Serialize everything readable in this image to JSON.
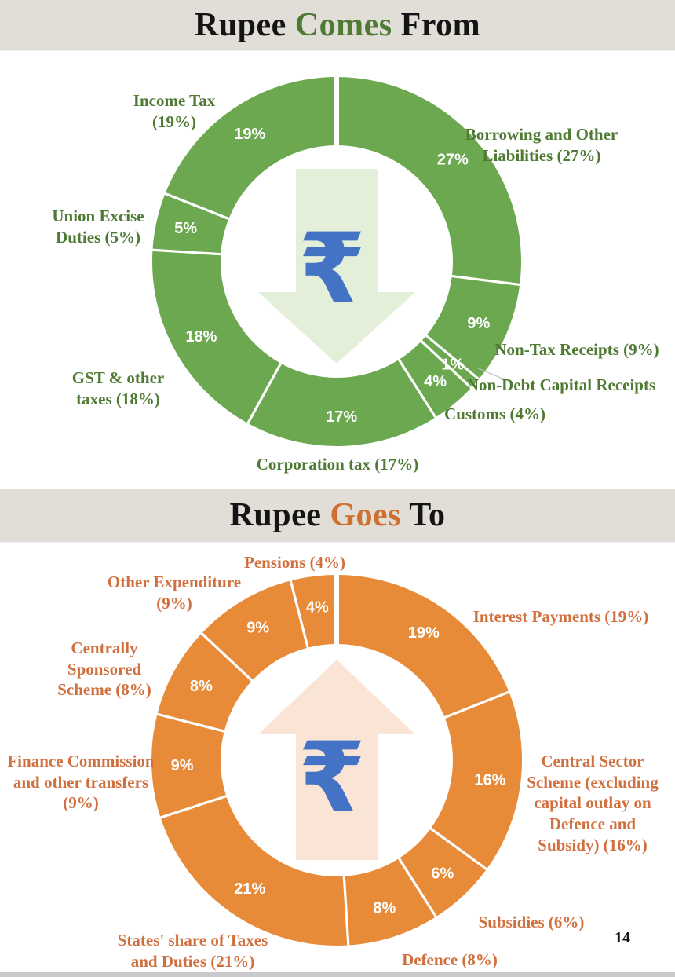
{
  "page": {
    "number": "14"
  },
  "sections": [
    {
      "id": "rupee-comes-from",
      "title": {
        "pre": "Rupee",
        "accent": "Comes",
        "post": "From",
        "accent_color": "#4e7a33",
        "base_color": "#141414"
      }
    },
    {
      "id": "rupee-goes-to",
      "title": {
        "pre": "Rupee",
        "accent": "Goes",
        "post": "To",
        "accent_color": "#cf7030",
        "base_color": "#141414"
      }
    }
  ],
  "chart_data": [
    {
      "type": "pie",
      "subtype": "donut",
      "title": "Rupee Comes From",
      "unit": "percent share of every rupee received",
      "ring_color": "#6ba84f",
      "text_color": "#4e7a33",
      "arrow_color": "#e3efd9",
      "rupee_color": "#4472c4",
      "rupee_symbol": "₹",
      "center_icon": "rupee-down-arrow",
      "legend": "none",
      "start_angle_deg": 0,
      "direction": "clockwise",
      "segments": [
        {
          "name": "Borrowing and Other Liabilities",
          "label": "Borrowing and Other Liabilities (27%)",
          "value": 27,
          "ring_label": "27%"
        },
        {
          "name": "Non-Tax Receipts",
          "label": "Non-Tax Receipts (9%)",
          "value": 9,
          "ring_label": "9%"
        },
        {
          "name": "Non-Debt Capital Receipts",
          "label": "Non-Debt Capital Receipts",
          "value": 1,
          "ring_label": "1%"
        },
        {
          "name": "Customs",
          "label": "Customs (4%)",
          "value": 4,
          "ring_label": "4%"
        },
        {
          "name": "Corporation tax",
          "label": "Corporation tax (17%)",
          "value": 17,
          "ring_label": "17%"
        },
        {
          "name": "GST & other taxes",
          "label": "GST & other taxes (18%)",
          "value": 18,
          "ring_label": "18%"
        },
        {
          "name": "Union Excise Duties",
          "label": "Union Excise Duties (5%)",
          "value": 5,
          "ring_label": "5%"
        },
        {
          "name": "Income Tax",
          "label": "Income Tax (19%)",
          "value": 19,
          "ring_label": "19%"
        }
      ]
    },
    {
      "type": "pie",
      "subtype": "donut",
      "title": "Rupee Goes To",
      "unit": "percent share of every rupee spent",
      "ring_color": "#e78b39",
      "text_color": "#d1703f",
      "arrow_color": "#fae4d5",
      "rupee_color": "#4472c4",
      "rupee_symbol": "₹",
      "center_icon": "rupee-up-arrow",
      "legend": "none",
      "start_angle_deg": 0,
      "direction": "clockwise",
      "segments": [
        {
          "name": "Interest Payments",
          "label": "Interest Payments (19%)",
          "value": 19,
          "ring_label": "19%"
        },
        {
          "name": "Central Sector Scheme",
          "label": "Central Sector Scheme (excluding capital outlay on Defence and Subsidy) (16%)",
          "value": 16,
          "ring_label": "16%"
        },
        {
          "name": "Subsidies",
          "label": "Subsidies (6%)",
          "value": 6,
          "ring_label": "6%"
        },
        {
          "name": "Defence",
          "label": "Defence (8%)",
          "value": 8,
          "ring_label": "8%"
        },
        {
          "name": "States' share of Taxes and Duties",
          "label": "States' share of Taxes and Duties (21%)",
          "value": 21,
          "ring_label": "21%"
        },
        {
          "name": "Finance Commission and other transfers",
          "label": "Finance Commission and other transfers (9%)",
          "value": 9,
          "ring_label": "9%"
        },
        {
          "name": "Centrally Sponsored Scheme",
          "label": "Centrally Sponsored Scheme (8%)",
          "value": 8,
          "ring_label": "8%"
        },
        {
          "name": "Other Expenditure",
          "label": "Other Expenditure (9%)",
          "value": 9,
          "ring_label": "9%"
        },
        {
          "name": "Pensions",
          "label": "Pensions (4%)",
          "value": 4,
          "ring_label": "4%"
        }
      ]
    }
  ]
}
